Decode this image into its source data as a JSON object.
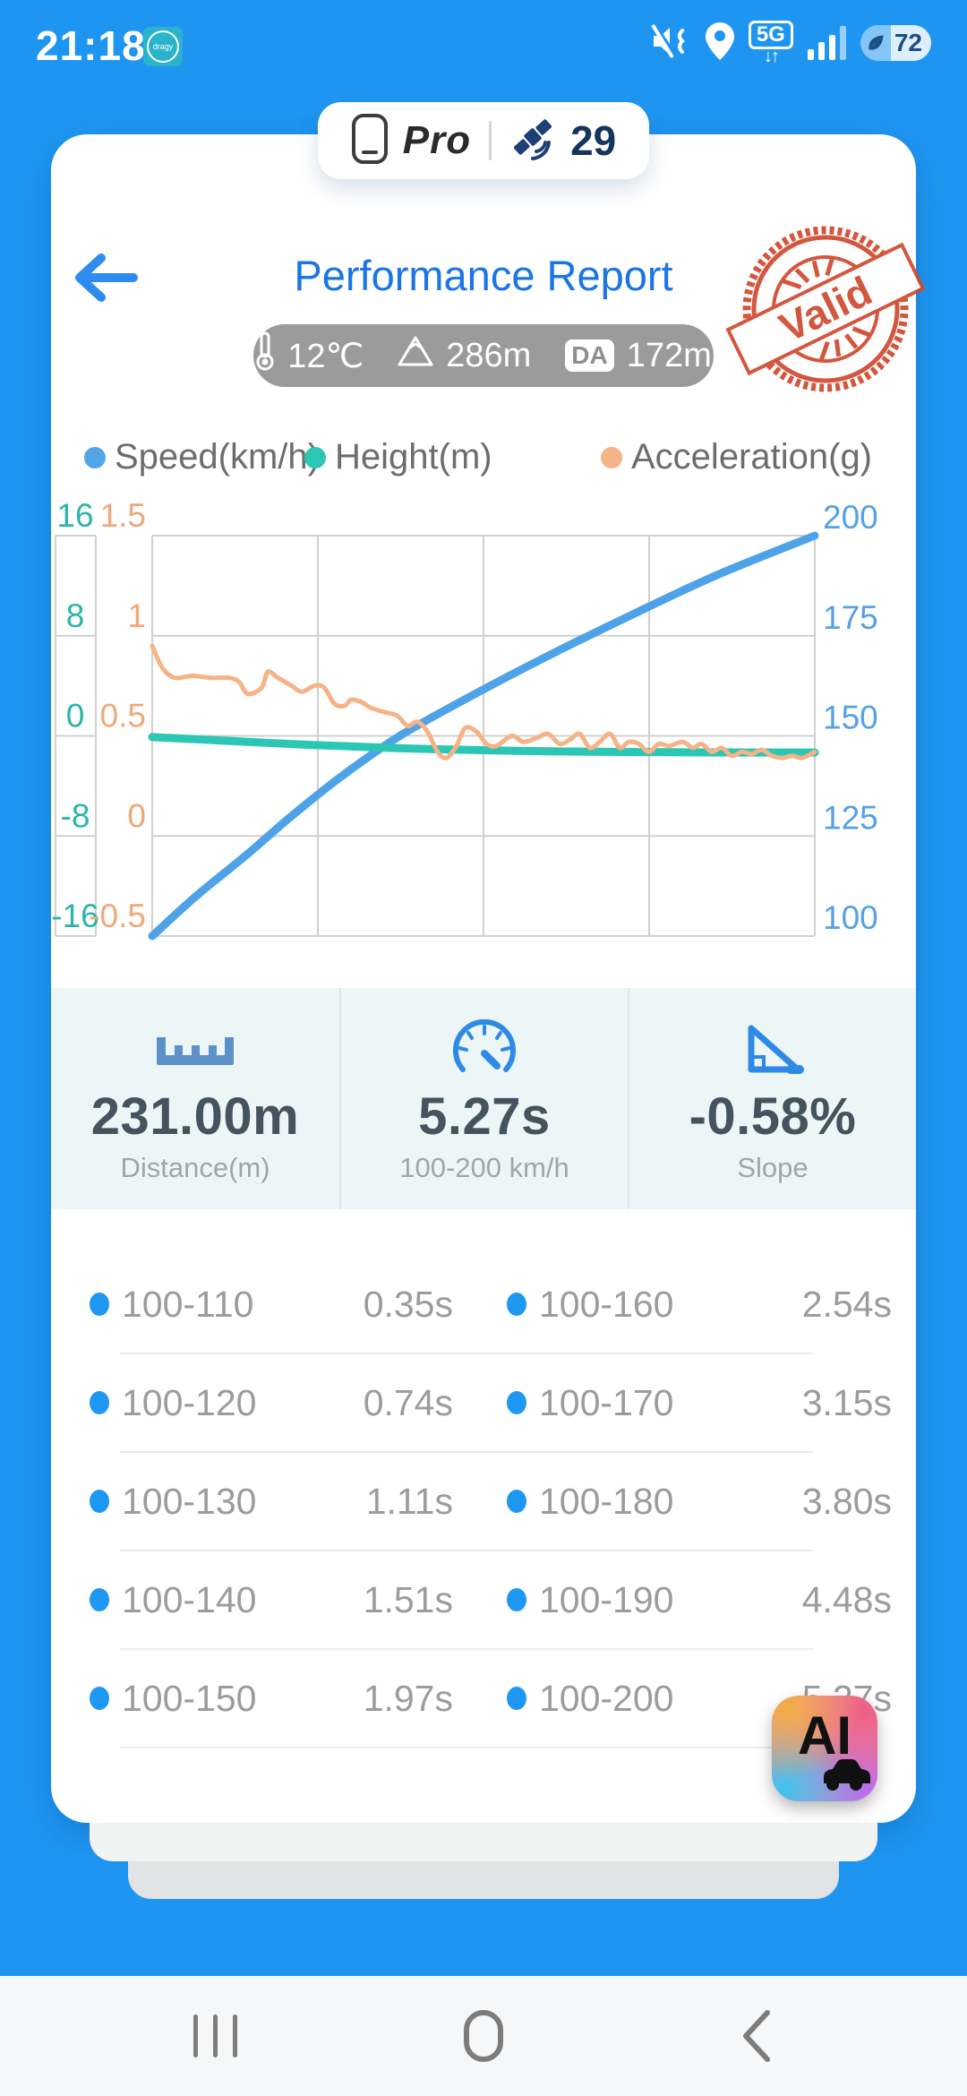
{
  "status_bar": {
    "time": "21:18",
    "app_badge": "dragy",
    "network": "5G",
    "battery_percent": "72"
  },
  "top_pill": {
    "device_label": "Pro",
    "satellite_count": "29"
  },
  "header": {
    "title": "Performance Report",
    "temperature": "12℃",
    "altitude": "286m",
    "da_badge": "DA",
    "density_altitude": "172m",
    "stamp": "Valid"
  },
  "legend": [
    {
      "label": "Speed(km/h)",
      "color": "#54a4e8"
    },
    {
      "label": "Height(m)",
      "color": "#2cc6b4"
    },
    {
      "label": "Acceleration(g)",
      "color": "#f6b387"
    }
  ],
  "chart_data": {
    "type": "line",
    "x_axis": {
      "min": 0,
      "max": 5.27,
      "unit": "s",
      "vertical_gridlines": 5,
      "grid": true
    },
    "axes": {
      "height": {
        "side": "left",
        "color": "#2cb5a8",
        "min": -16,
        "max": 16,
        "ticks": [
          "16",
          "8",
          "0",
          "-8",
          "-16"
        ]
      },
      "accel": {
        "side": "left",
        "color": "#f0a878",
        "min": -0.5,
        "max": 1.5,
        "ticks": [
          "1.5",
          "1",
          "0.5",
          "0",
          "-0.5"
        ]
      },
      "speed": {
        "side": "right",
        "color": "#55a0e8",
        "min": 100,
        "max": 200,
        "ticks": [
          "200",
          "175",
          "150",
          "125",
          "100"
        ]
      }
    },
    "series": [
      {
        "name": "Speed(km/h)",
        "axis": "speed",
        "color": "#4ea3e8",
        "width": 9,
        "points": [
          [
            0,
            100
          ],
          [
            0.35,
            110
          ],
          [
            0.74,
            120
          ],
          [
            1.11,
            130
          ],
          [
            1.51,
            140
          ],
          [
            1.97,
            150
          ],
          [
            2.54,
            160
          ],
          [
            3.15,
            170
          ],
          [
            3.8,
            180
          ],
          [
            4.48,
            190
          ],
          [
            5.27,
            200
          ]
        ]
      },
      {
        "name": "Height(m)",
        "axis": "height",
        "color": "#2cc6b4",
        "width": 9,
        "points": [
          [
            0,
            -0.1
          ],
          [
            0.4,
            -0.3
          ],
          [
            0.8,
            -0.5
          ],
          [
            1.2,
            -0.7
          ],
          [
            1.6,
            -0.85
          ],
          [
            2,
            -1
          ],
          [
            2.4,
            -1.1
          ],
          [
            2.8,
            -1.18
          ],
          [
            3.2,
            -1.24
          ],
          [
            3.6,
            -1.28
          ],
          [
            4,
            -1.3
          ],
          [
            4.4,
            -1.32
          ],
          [
            4.8,
            -1.33
          ],
          [
            5.27,
            -1.33
          ]
        ]
      },
      {
        "name": "Acceleration(g)",
        "axis": "accel",
        "color": "#f6b387",
        "width": 5,
        "points": [
          [
            0,
            0.95
          ],
          [
            0.08,
            0.84
          ],
          [
            0.18,
            0.79
          ],
          [
            0.32,
            0.8
          ],
          [
            0.47,
            0.79
          ],
          [
            0.61,
            0.79
          ],
          [
            0.69,
            0.77
          ],
          [
            0.76,
            0.71
          ],
          [
            0.87,
            0.74
          ],
          [
            0.92,
            0.82
          ],
          [
            1,
            0.79
          ],
          [
            1.11,
            0.75
          ],
          [
            1.19,
            0.72
          ],
          [
            1.29,
            0.75
          ],
          [
            1.37,
            0.74
          ],
          [
            1.45,
            0.66
          ],
          [
            1.53,
            0.65
          ],
          [
            1.58,
            0.68
          ],
          [
            1.66,
            0.67
          ],
          [
            1.74,
            0.64
          ],
          [
            1.84,
            0.62
          ],
          [
            1.95,
            0.6
          ],
          [
            2.03,
            0.55
          ],
          [
            2.11,
            0.57
          ],
          [
            2.19,
            0.52
          ],
          [
            2.27,
            0.42
          ],
          [
            2.34,
            0.39
          ],
          [
            2.42,
            0.45
          ],
          [
            2.49,
            0.54
          ],
          [
            2.58,
            0.52
          ],
          [
            2.66,
            0.46
          ],
          [
            2.74,
            0.45
          ],
          [
            2.86,
            0.5
          ],
          [
            2.95,
            0.47
          ],
          [
            3.06,
            0.49
          ],
          [
            3.15,
            0.51
          ],
          [
            3.24,
            0.46
          ],
          [
            3.32,
            0.48
          ],
          [
            3.4,
            0.51
          ],
          [
            3.48,
            0.44
          ],
          [
            3.56,
            0.47
          ],
          [
            3.64,
            0.51
          ],
          [
            3.72,
            0.44
          ],
          [
            3.79,
            0.47
          ],
          [
            3.87,
            0.46
          ],
          [
            3.95,
            0.42
          ],
          [
            4.03,
            0.46
          ],
          [
            4.11,
            0.45
          ],
          [
            4.22,
            0.47
          ],
          [
            4.3,
            0.44
          ],
          [
            4.37,
            0.46
          ],
          [
            4.45,
            0.42
          ],
          [
            4.53,
            0.44
          ],
          [
            4.61,
            0.4
          ],
          [
            4.69,
            0.42
          ],
          [
            4.77,
            0.41
          ],
          [
            4.85,
            0.43
          ],
          [
            4.93,
            0.4
          ],
          [
            5.01,
            0.39
          ],
          [
            5.09,
            0.4
          ],
          [
            5.17,
            0.39
          ],
          [
            5.27,
            0.42
          ]
        ]
      }
    ]
  },
  "stats": [
    {
      "icon": "ruler-icon",
      "value": "231.00m",
      "label": "Distance(m)"
    },
    {
      "icon": "speedometer-icon",
      "value": "5.27s",
      "label": "100-200 km/h"
    },
    {
      "icon": "slope-icon",
      "value": "-0.58%",
      "label": "Slope"
    }
  ],
  "splits": {
    "left": [
      [
        "100-110",
        "0.35s"
      ],
      [
        "100-120",
        "0.74s"
      ],
      [
        "100-130",
        "1.11s"
      ],
      [
        "100-140",
        "1.51s"
      ],
      [
        "100-150",
        "1.97s"
      ]
    ],
    "right": [
      [
        "100-160",
        "2.54s"
      ],
      [
        "100-170",
        "3.15s"
      ],
      [
        "100-180",
        "3.80s"
      ],
      [
        "100-190",
        "4.48s"
      ],
      [
        "100-200",
        "5.27s"
      ]
    ]
  },
  "ai_button": {
    "label": "AI"
  },
  "colors": {
    "background": "#1e96f1",
    "title_blue": "#1a76e8",
    "stamp_red": "#d0492e",
    "stats_background": "#edf6f6",
    "table_text": "#9c9c9c",
    "bullet_blue": "#1f98f3"
  }
}
